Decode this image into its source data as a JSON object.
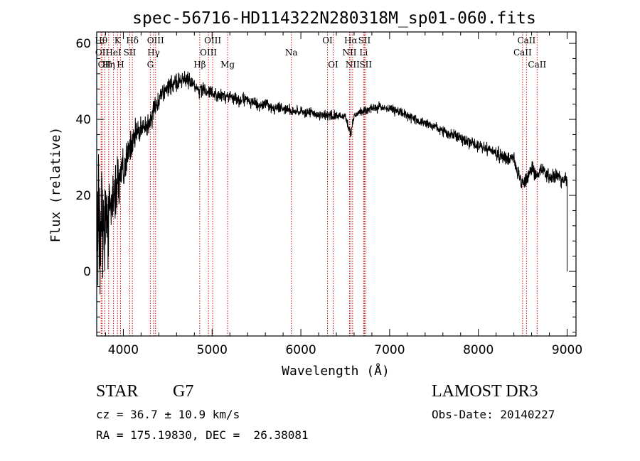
{
  "chart_data": {
    "type": "line",
    "title": "spec-56716-HD114322N280318M_sp01-060.fits",
    "xlabel": "Wavelength (Å)",
    "ylabel": "Flux (relative)",
    "xlim": [
      3700,
      9100
    ],
    "ylim": [
      -17,
      63
    ],
    "x_ticks": [
      4000,
      5000,
      6000,
      7000,
      8000,
      9000
    ],
    "y_ticks": [
      0,
      20,
      40,
      60
    ],
    "x_minor_step": 200,
    "y_minor_step": 4,
    "series": [
      {
        "name": "spectrum",
        "x": [
          3700,
          3760,
          3800,
          3850,
          3900,
          3950,
          4000,
          4050,
          4100,
          4150,
          4200,
          4250,
          4300,
          4350,
          4400,
          4450,
          4500,
          4550,
          4600,
          4650,
          4700,
          4750,
          4800,
          4850,
          4900,
          4950,
          5000,
          5100,
          5200,
          5300,
          5400,
          5500,
          5600,
          5700,
          5800,
          5900,
          6000,
          6100,
          6200,
          6300,
          6400,
          6500,
          6560,
          6600,
          6700,
          6800,
          6900,
          7000,
          7100,
          7200,
          7300,
          7400,
          7500,
          7600,
          7700,
          7800,
          7900,
          8000,
          8100,
          8200,
          8300,
          8400,
          8498,
          8542,
          8600,
          8662,
          8700,
          8800,
          8900,
          8950,
          9000
        ],
        "values": [
          18,
          10,
          14,
          16,
          20,
          24,
          26,
          31,
          34,
          36,
          37,
          38,
          39,
          43,
          45,
          47,
          48,
          49,
          50,
          50,
          51,
          50,
          49,
          48,
          48,
          47,
          47,
          46,
          46,
          45,
          45,
          44,
          44,
          43,
          43,
          42,
          42,
          42,
          41,
          41,
          41,
          41,
          36,
          41,
          42,
          43,
          43,
          43,
          42,
          41,
          40,
          39,
          38,
          37,
          36,
          35,
          34,
          33,
          32,
          31,
          30,
          29,
          23,
          24,
          27,
          25,
          27,
          25,
          25,
          24,
          24
        ],
        "noise_amplitude": [
          32,
          20,
          18,
          16,
          12,
          10,
          9,
          7,
          6,
          6,
          5,
          5,
          5,
          5,
          4,
          4,
          4,
          4,
          4,
          4,
          4,
          3,
          3,
          3,
          3,
          3,
          3,
          2.5,
          2.5,
          2.5,
          2.5,
          2.5,
          2.2,
          2.2,
          2.2,
          2.2,
          2,
          2,
          2,
          2,
          2,
          2,
          2,
          2,
          2,
          2,
          2,
          2,
          2,
          2,
          2,
          2,
          2,
          2.5,
          2.5,
          2.5,
          2.5,
          2.5,
          2.5,
          2.5,
          2.5,
          3,
          3,
          3,
          3,
          3,
          3,
          3,
          3,
          3,
          3
        ],
        "end_drop": 0
      }
    ],
    "annotations": [
      {
        "wavelength": 3750,
        "label": "Hθ",
        "row": 0
      },
      {
        "wavelength": 3760,
        "label": "OII",
        "row": 1
      },
      {
        "wavelength": 3790,
        "label": "OII",
        "row": 2
      },
      {
        "wavelength": 3835,
        "label": "Hη",
        "row": 2
      },
      {
        "wavelength": 3889,
        "label": "HeI",
        "row": 1
      },
      {
        "wavelength": 3934,
        "label": "K",
        "row": 0
      },
      {
        "wavelength": 3968,
        "label": "H",
        "row": 2
      },
      {
        "wavelength": 4072,
        "label": "SII",
        "row": 1
      },
      {
        "wavelength": 4102,
        "label": "Hδ",
        "row": 0
      },
      {
        "wavelength": 4304,
        "label": "G",
        "row": 2
      },
      {
        "wavelength": 4341,
        "label": "Hγ",
        "row": 1
      },
      {
        "wavelength": 4363,
        "label": "OIII",
        "row": 0
      },
      {
        "wavelength": 4861,
        "label": "Hβ",
        "row": 2
      },
      {
        "wavelength": 4959,
        "label": "OIII",
        "row": 1
      },
      {
        "wavelength": 5007,
        "label": "OIII",
        "row": 0
      },
      {
        "wavelength": 5175,
        "label": "Mg",
        "row": 2
      },
      {
        "wavelength": 5893,
        "label": "Na",
        "row": 1
      },
      {
        "wavelength": 6300,
        "label": "OI",
        "row": 0
      },
      {
        "wavelength": 6364,
        "label": "OI",
        "row": 2
      },
      {
        "wavelength": 6548,
        "label": "NII",
        "row": 1
      },
      {
        "wavelength": 6563,
        "label": "Hα",
        "row": 0
      },
      {
        "wavelength": 6583,
        "label": "NII",
        "row": 2
      },
      {
        "wavelength": 6707,
        "label": "Li",
        "row": 1
      },
      {
        "wavelength": 6716,
        "label": "SII",
        "row": 0
      },
      {
        "wavelength": 6731,
        "label": "SII",
        "row": 2
      },
      {
        "wavelength": 8498,
        "label": "CaII",
        "row": 1
      },
      {
        "wavelength": 8542,
        "label": "CaII",
        "row": 0
      },
      {
        "wavelength": 8662,
        "label": "CaII",
        "row": 2
      }
    ]
  },
  "info": {
    "class": "STAR",
    "subclass": "G7",
    "survey": "LAMOST DR3",
    "cz": "cz = 36.7 ± 10.9 km/s",
    "obs_date": "Obs-Date: 20140227",
    "coords": "RA = 175.19830, DEC =  26.38081"
  },
  "colors": {
    "line_marker": "#cc0000",
    "spectrum": "#000000",
    "axes": "#000000"
  }
}
